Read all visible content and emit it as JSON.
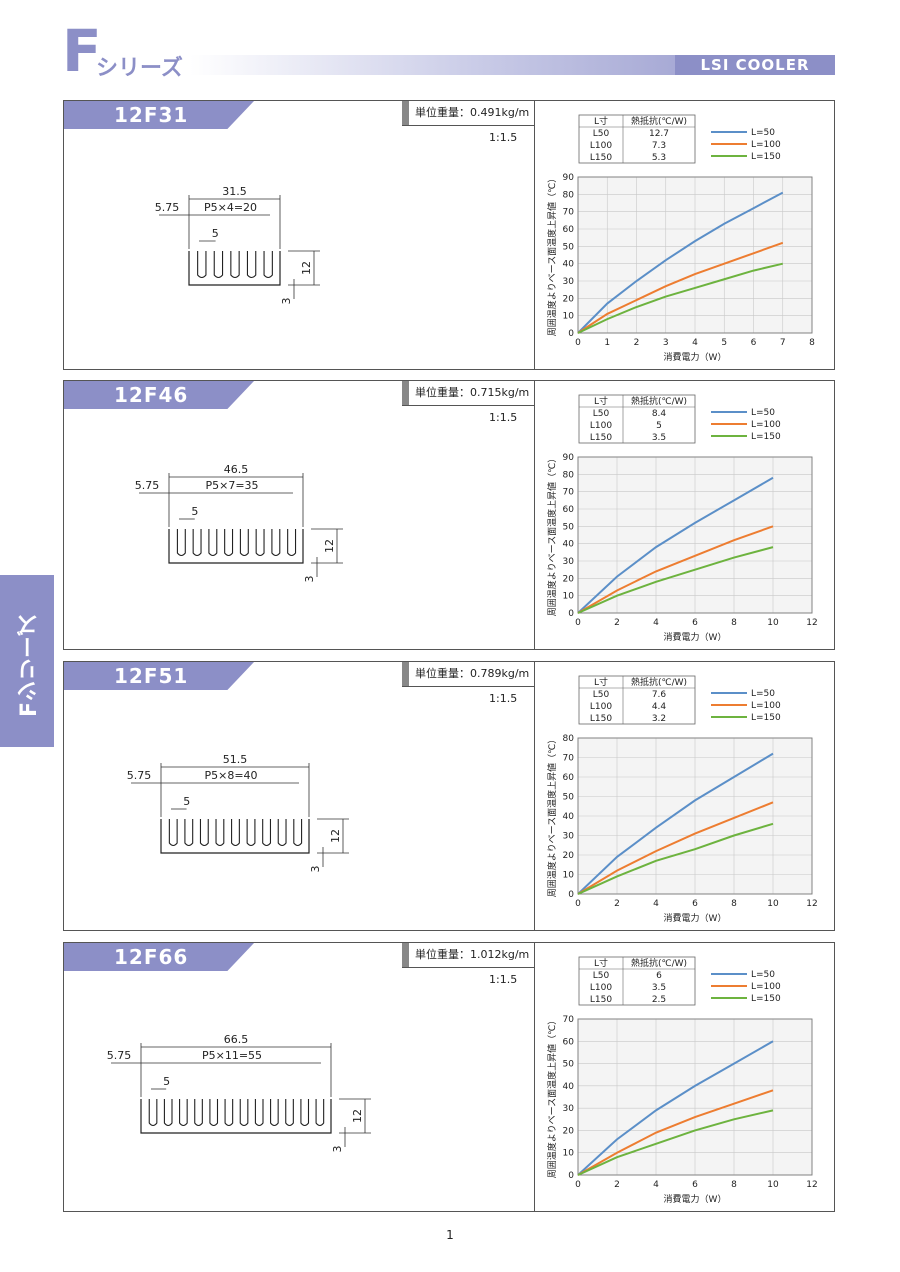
{
  "header": {
    "brand_letter": "F",
    "brand_series": "シリーズ",
    "product_line": "LSI COOLER"
  },
  "side_tab": {
    "label": "Fシリーズ"
  },
  "footer": {
    "page_number": "1"
  },
  "colors": {
    "accent": "#8c8fc7",
    "L50": "#5b8fc8",
    "L100": "#ed7d31",
    "L150": "#6db33f"
  },
  "products": [
    {
      "model": "12F31",
      "weight_label": "単位重量：0.491kg/m",
      "scale": "1:1.5",
      "dims": {
        "width": "31.5",
        "offset": "5.75",
        "pitch": "P5×4=20",
        "gap": "5",
        "height": "12",
        "base": "3"
      },
      "table": {
        "headers": [
          "L寸",
          "熱抵抗(℃/W)"
        ],
        "rows": [
          [
            "L50",
            "12.7"
          ],
          [
            "L100",
            "7.3"
          ],
          [
            "L150",
            "5.3"
          ]
        ]
      }
    },
    {
      "model": "12F46",
      "weight_label": "単位重量：0.715kg/m",
      "scale": "1:1.5",
      "dims": {
        "width": "46.5",
        "offset": "5.75",
        "pitch": "P5×7=35",
        "gap": "5",
        "height": "12",
        "base": "3"
      },
      "table": {
        "headers": [
          "L寸",
          "熱抵抗(℃/W)"
        ],
        "rows": [
          [
            "L50",
            "8.4"
          ],
          [
            "L100",
            "5"
          ],
          [
            "L150",
            "3.5"
          ]
        ]
      }
    },
    {
      "model": "12F51",
      "weight_label": "単位重量：0.789kg/m",
      "scale": "1:1.5",
      "dims": {
        "width": "51.5",
        "offset": "5.75",
        "pitch": "P5×8=40",
        "gap": "5",
        "height": "12",
        "base": "3"
      },
      "table": {
        "headers": [
          "L寸",
          "熱抵抗(℃/W)"
        ],
        "rows": [
          [
            "L50",
            "7.6"
          ],
          [
            "L100",
            "4.4"
          ],
          [
            "L150",
            "3.2"
          ]
        ]
      }
    },
    {
      "model": "12F66",
      "weight_label": "単位重量：1.012kg/m",
      "scale": "1:1.5",
      "dims": {
        "width": "66.5",
        "offset": "5.75",
        "pitch": "P5×11=55",
        "gap": "5",
        "height": "12",
        "base": "3"
      },
      "table": {
        "headers": [
          "L寸",
          "熱抵抗(℃/W)"
        ],
        "rows": [
          [
            "L50",
            "6"
          ],
          [
            "L100",
            "3.5"
          ],
          [
            "L150",
            "2.5"
          ]
        ]
      }
    }
  ],
  "chart_data": [
    {
      "type": "line",
      "title": "12F31",
      "xlabel": "消費電力（W）",
      "ylabel": "周囲温度よりベース面温度上昇値（℃）",
      "xlim": [
        0,
        8
      ],
      "ylim": [
        0,
        90
      ],
      "xticks": [
        0,
        1,
        2,
        3,
        4,
        5,
        6,
        7,
        8
      ],
      "yticks": [
        0,
        10,
        20,
        30,
        40,
        50,
        60,
        70,
        80,
        90
      ],
      "x": [
        0,
        1,
        2,
        3,
        4,
        5,
        6,
        7
      ],
      "series": [
        {
          "name": "L=50",
          "values": [
            0,
            17,
            30,
            42,
            53,
            63,
            72,
            81
          ]
        },
        {
          "name": "L=100",
          "values": [
            0,
            11,
            19,
            27,
            34,
            40,
            46,
            52
          ]
        },
        {
          "name": "L=150",
          "values": [
            0,
            8,
            15,
            21,
            26,
            31,
            36,
            40
          ]
        }
      ]
    },
    {
      "type": "line",
      "title": "12F46",
      "xlabel": "消費電力（W）",
      "ylabel": "周囲温度よりベース面温度上昇値（℃）",
      "xlim": [
        0,
        12
      ],
      "ylim": [
        0,
        90
      ],
      "xticks": [
        0,
        2,
        4,
        6,
        8,
        10,
        12
      ],
      "yticks": [
        0,
        10,
        20,
        30,
        40,
        50,
        60,
        70,
        80,
        90
      ],
      "x": [
        0,
        2,
        4,
        6,
        8,
        10
      ],
      "series": [
        {
          "name": "L=50",
          "values": [
            0,
            21,
            38,
            52,
            65,
            78
          ]
        },
        {
          "name": "L=100",
          "values": [
            0,
            13,
            24,
            33,
            42,
            50
          ]
        },
        {
          "name": "L=150",
          "values": [
            0,
            10,
            18,
            25,
            32,
            38
          ]
        }
      ]
    },
    {
      "type": "line",
      "title": "12F51",
      "xlabel": "消費電力（W）",
      "ylabel": "周囲温度よりベース面温度上昇値（℃）",
      "xlim": [
        0,
        12
      ],
      "ylim": [
        0,
        80
      ],
      "xticks": [
        0,
        2,
        4,
        6,
        8,
        10,
        12
      ],
      "yticks": [
        0,
        10,
        20,
        30,
        40,
        50,
        60,
        70,
        80
      ],
      "x": [
        0,
        2,
        4,
        6,
        8,
        10
      ],
      "series": [
        {
          "name": "L=50",
          "values": [
            0,
            19,
            34,
            48,
            60,
            72
          ]
        },
        {
          "name": "L=100",
          "values": [
            0,
            12,
            22,
            31,
            39,
            47
          ]
        },
        {
          "name": "L=150",
          "values": [
            0,
            9,
            17,
            23,
            30,
            36
          ]
        }
      ]
    },
    {
      "type": "line",
      "title": "12F66",
      "xlabel": "消費電力（W）",
      "ylabel": "周囲温度よりベース面温度上昇値（℃）",
      "xlim": [
        0,
        12
      ],
      "ylim": [
        0,
        70
      ],
      "xticks": [
        0,
        2,
        4,
        6,
        8,
        10,
        12
      ],
      "yticks": [
        0,
        10,
        20,
        30,
        40,
        50,
        60,
        70
      ],
      "x": [
        0,
        2,
        4,
        6,
        8,
        10
      ],
      "series": [
        {
          "name": "L=50",
          "values": [
            0,
            16,
            29,
            40,
            50,
            60
          ]
        },
        {
          "name": "L=100",
          "values": [
            0,
            10,
            19,
            26,
            32,
            38
          ]
        },
        {
          "name": "L=150",
          "values": [
            0,
            8,
            14,
            20,
            25,
            29
          ]
        }
      ]
    }
  ]
}
